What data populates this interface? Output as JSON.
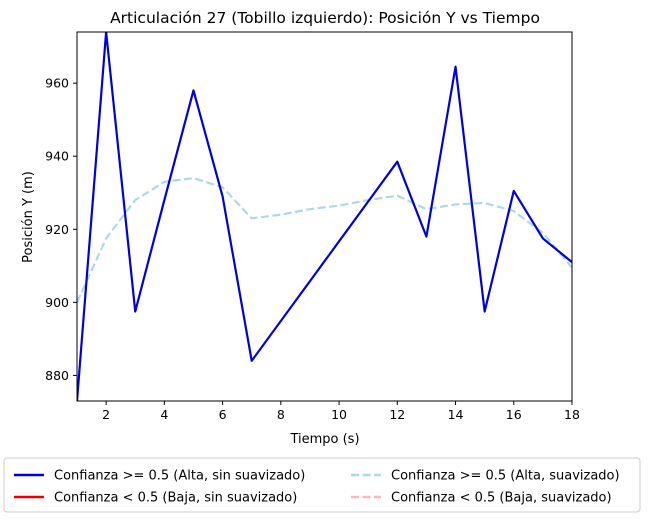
{
  "chart_data": {
    "type": "line",
    "title": "Articulación 27 (Tobillo izquierdo): Posición Y vs Tiempo",
    "xlabel": "Tiempo (s)",
    "ylabel": "Posición Y (m)",
    "xlim": [
      1,
      18
    ],
    "ylim": [
      873,
      974
    ],
    "xticks": [
      2,
      4,
      6,
      8,
      10,
      12,
      14,
      16,
      18
    ],
    "yticks": [
      880,
      900,
      920,
      940,
      960
    ],
    "grid": false,
    "legend_position": "bottom-outside",
    "series": [
      {
        "name": "Confianza >= 0.5 (Alta, sin suavizado)",
        "color": "#0000dd",
        "style": "solid",
        "x": [
          1,
          2,
          3,
          4,
          5,
          6,
          7,
          12,
          13,
          14,
          15,
          16,
          17,
          18
        ],
        "y": [
          873,
          974,
          897.5,
          928,
          958,
          929,
          884,
          938.5,
          918,
          964.5,
          897.5,
          930.5,
          917.5,
          911
        ]
      },
      {
        "name": "Confianza < 0.5 (Baja, sin suavizado)",
        "color": "#ee0000",
        "style": "solid",
        "x": [],
        "y": []
      },
      {
        "name": "Confianza >= 0.5 (Alta, suavizado)",
        "color": "#add8e6",
        "style": "dashed",
        "x": [
          1,
          2,
          3,
          4,
          5,
          6,
          7,
          8,
          9,
          10,
          11,
          12,
          13,
          14,
          15,
          16,
          17,
          18
        ],
        "y": [
          900,
          917.5,
          928,
          933,
          934,
          931.5,
          923,
          924,
          925.5,
          926.5,
          928,
          929.2,
          925.5,
          926.8,
          927.2,
          925,
          919,
          909.5
        ]
      },
      {
        "name": "Confianza < 0.5 (Baja, suavizado)",
        "color": "#ffb6c1",
        "style": "dashed",
        "x": [],
        "y": []
      }
    ]
  }
}
